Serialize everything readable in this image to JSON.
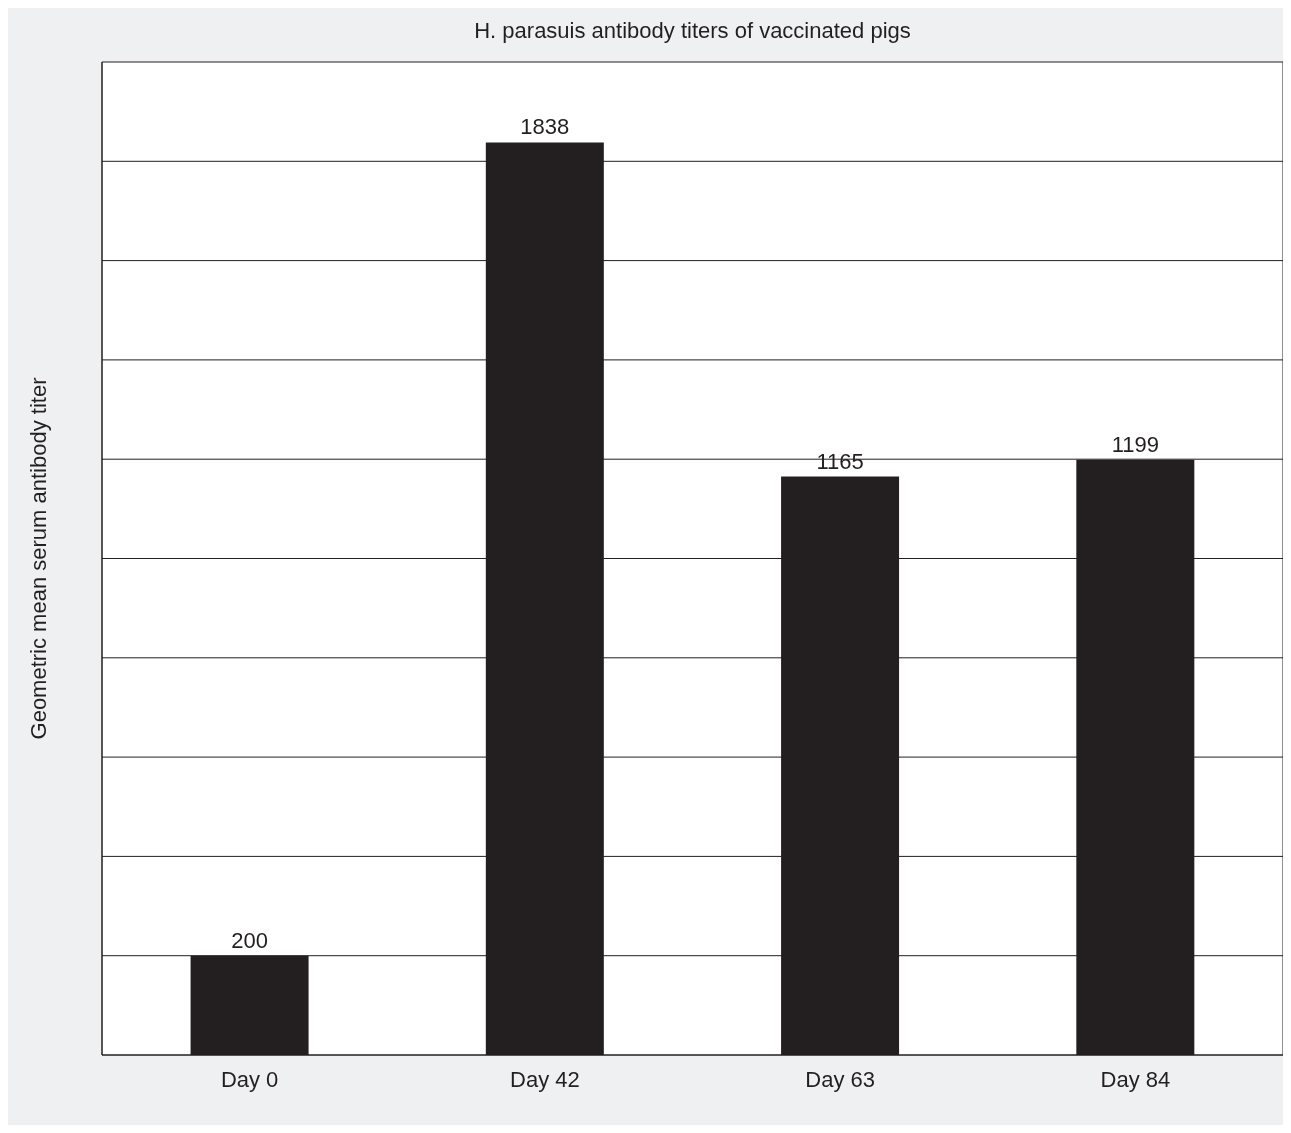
{
  "chart_data": {
    "type": "bar",
    "title": "H. parasuis  antibody titers of vaccinated pigs",
    "ylabel": "Geometric mean serum antibody titer",
    "categories": [
      "Day 0",
      "Day 42",
      "Day 63",
      "Day 84"
    ],
    "values": [
      200,
      1838,
      1165,
      1199
    ],
    "color": "#231f20",
    "ylim": [
      0,
      2000
    ],
    "yticks": [
      {
        "value": 0,
        "label": null
      },
      {
        "value": 200,
        "label": null
      },
      {
        "value": 400,
        "label": null
      },
      {
        "value": 600,
        "label": null
      },
      {
        "value": 800,
        "label": null
      },
      {
        "value": 1000,
        "label": null
      },
      {
        "value": 1200,
        "label": null
      },
      {
        "value": 1400,
        "label": null
      },
      {
        "value": 1600,
        "label": null
      },
      {
        "value": 1800,
        "label": null
      },
      {
        "value": 2000,
        "label": null
      }
    ],
    "grid": "y",
    "data_labels": true,
    "tick_labels": "x"
  }
}
